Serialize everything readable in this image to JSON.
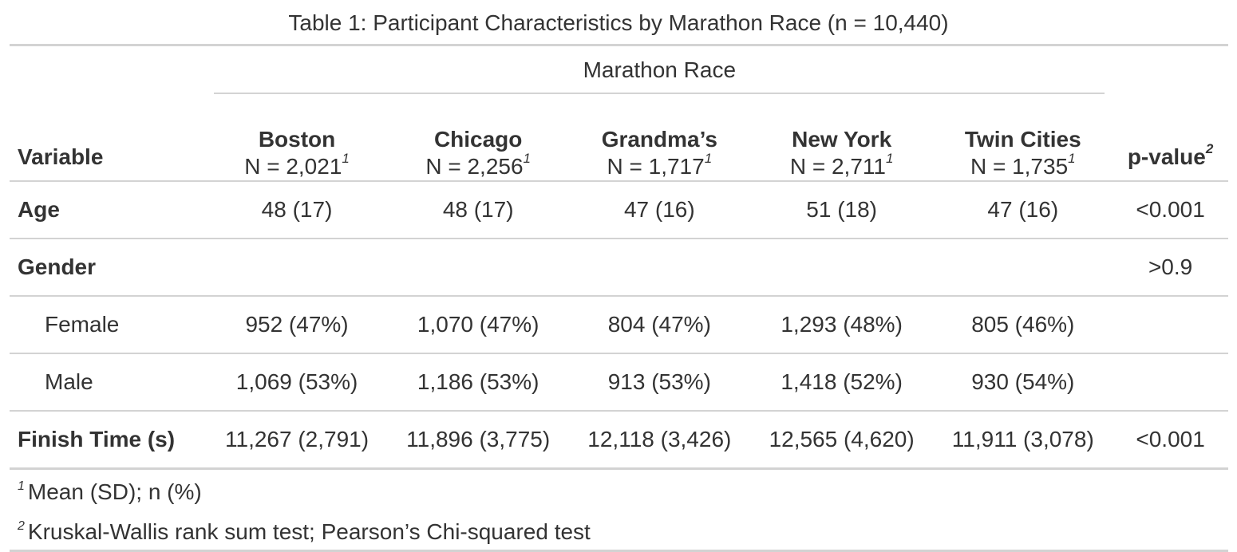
{
  "title": "Table 1: Participant Characteristics by Marathon Race (n = 10,440)",
  "spanner": "Marathon Race",
  "header": {
    "variable_label": "Variable",
    "pvalue_label": "p-value",
    "pvalue_footnote_mark": "2",
    "columns": [
      {
        "name": "Boston",
        "n": "N = 2,021",
        "mark": "1"
      },
      {
        "name": "Chicago",
        "n": "N = 2,256",
        "mark": "1"
      },
      {
        "name": "Grandma’s",
        "n": "N = 1,717",
        "mark": "1"
      },
      {
        "name": "New York",
        "n": "N = 2,711",
        "mark": "1"
      },
      {
        "name": "Twin Cities",
        "n": "N = 1,735",
        "mark": "1"
      }
    ]
  },
  "rows": [
    {
      "label": "Age",
      "bold": true,
      "indent": false,
      "cells": [
        "48 (17)",
        "48 (17)",
        "47 (16)",
        "51 (18)",
        "47 (16)"
      ],
      "p": "<0.001"
    },
    {
      "label": "Gender",
      "bold": true,
      "indent": false,
      "cells": [
        "",
        "",
        "",
        "",
        ""
      ],
      "p": ">0.9"
    },
    {
      "label": "Female",
      "bold": false,
      "indent": true,
      "cells": [
        "952 (47%)",
        "1,070 (47%)",
        "804 (47%)",
        "1,293 (48%)",
        "805 (46%)"
      ],
      "p": ""
    },
    {
      "label": "Male",
      "bold": false,
      "indent": true,
      "cells": [
        "1,069 (53%)",
        "1,186 (53%)",
        "913 (53%)",
        "1,418 (52%)",
        "930 (54%)"
      ],
      "p": ""
    },
    {
      "label": "Finish Time (s)",
      "bold": true,
      "indent": false,
      "cells": [
        "11,267 (2,791)",
        "11,896 (3,775)",
        "12,118 (3,426)",
        "12,565 (4,620)",
        "11,911 (3,078)"
      ],
      "p": "<0.001"
    }
  ],
  "footnotes": [
    {
      "mark": "1",
      "text": "Mean (SD); n (%)"
    },
    {
      "mark": "2",
      "text": "Kruskal-Wallis rank sum test; Pearson’s Chi-squared test"
    }
  ]
}
